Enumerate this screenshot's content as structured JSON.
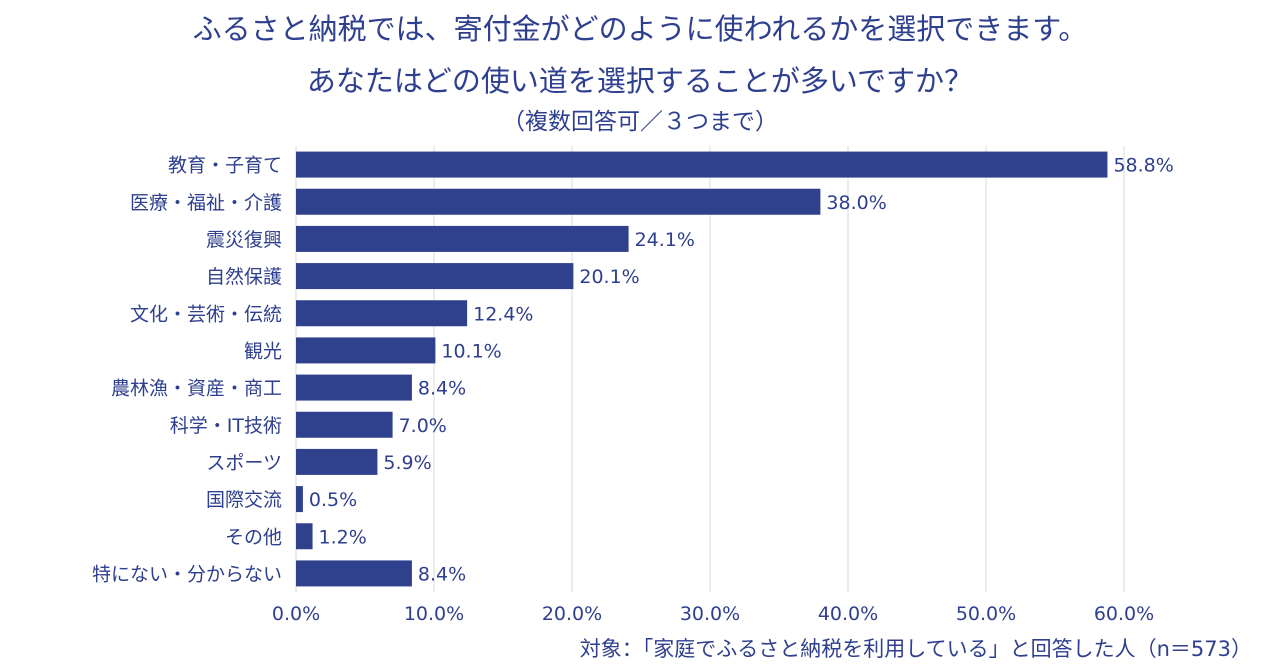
{
  "title": {
    "line1": "ふるさと納税では、寄付金がどのように使われるかを選択できます。",
    "line2": "あなたはどの使い道を選択することが多いですか？",
    "line3": "（複数回答可／３つまで）"
  },
  "footer": "対象：「家庭でふるさと納税を利用している」と回答した人（n＝573）",
  "colors": {
    "bar": "#2f418d",
    "text": "#2f3f8f",
    "grid": "#d9d9d9"
  },
  "chart_data": {
    "type": "bar",
    "orientation": "horizontal",
    "categories": [
      "教育・子育て",
      "医療・福祉・介護",
      "震災復興",
      "自然保護",
      "文化・芸術・伝統",
      "観光",
      "農林漁・資産・商工",
      "科学・IT技術",
      "スポーツ",
      "国際交流",
      "その他",
      "特にない・分からない"
    ],
    "values": [
      58.8,
      38.0,
      24.1,
      20.1,
      12.4,
      10.1,
      8.4,
      7.0,
      5.9,
      0.5,
      1.2,
      8.4
    ],
    "value_labels": [
      "58.8%",
      "38.0%",
      "24.1%",
      "20.1%",
      "12.4%",
      "10.1%",
      "8.4%",
      "7.0%",
      "5.9%",
      "0.5%",
      "1.2%",
      "8.4%"
    ],
    "xlim": [
      0,
      60
    ],
    "xticks": [
      0,
      10,
      20,
      30,
      40,
      50,
      60
    ],
    "xtick_labels": [
      "0.0%",
      "10.0%",
      "20.0%",
      "30.0%",
      "40.0%",
      "50.0%",
      "60.0%"
    ],
    "xlabel": "",
    "ylabel": "",
    "grid": "vertical",
    "legend": "none"
  }
}
